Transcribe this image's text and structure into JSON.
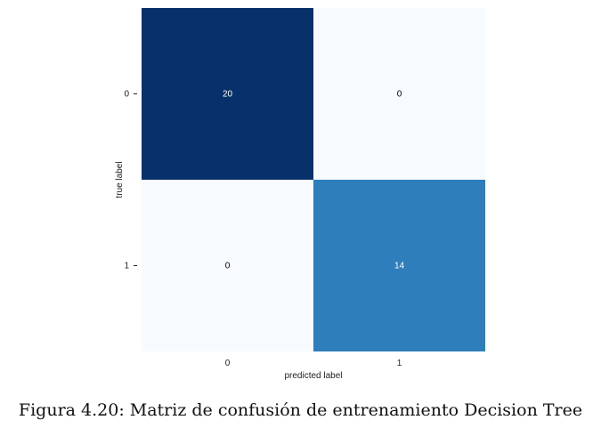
{
  "chart_data": {
    "type": "heatmap",
    "title": "",
    "xlabel": "predicted label",
    "ylabel": "true label",
    "x_categories": [
      "0",
      "1"
    ],
    "y_categories": [
      "0",
      "1"
    ],
    "values": [
      [
        20,
        0
      ],
      [
        0,
        14
      ]
    ],
    "colormap": "Blues",
    "colorbar": false,
    "annotations": true,
    "cell_colors": [
      [
        "#08306b",
        "#f7fbff"
      ],
      [
        "#f7fbff",
        "#2e7ebc"
      ]
    ],
    "annotation_colors": [
      [
        "#ffffff",
        "#000000"
      ],
      [
        "#000000",
        "#ffffff"
      ]
    ]
  },
  "caption": "Figura 4.20: Matriz de confusión de entrenamiento Decision Tree"
}
